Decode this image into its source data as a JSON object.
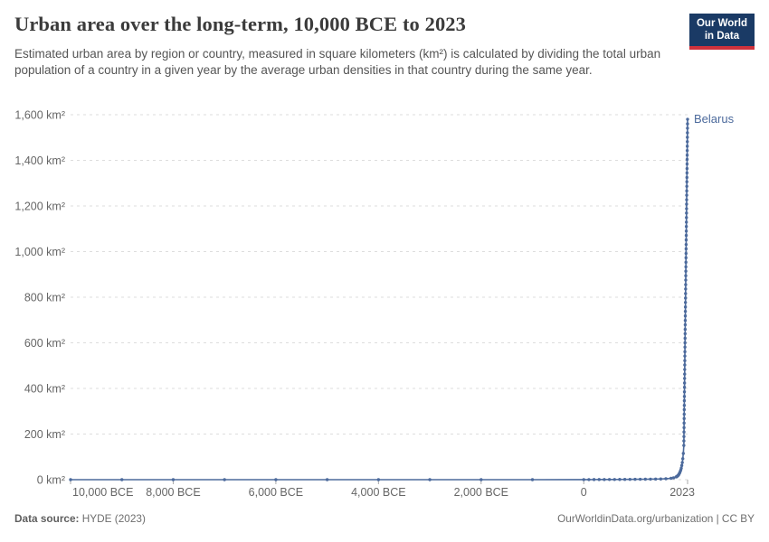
{
  "header": {
    "title": "Urban area over the long-term, 10,000 BCE to 2023",
    "subtitle": "Estimated urban area by region or country, measured in square kilometers (km²) is calculated by dividing the total urban population of a country in a given year by the average urban densities in that country during the same year."
  },
  "logo": {
    "line1": "Our World",
    "line2": "in Data",
    "bg_color": "#1a3a65",
    "accent_color": "#cf323c"
  },
  "footer": {
    "datasource_label": "Data source:",
    "datasource_value": "HYDE (2023)",
    "link": "OurWorldinData.org/urbanization | CC BY"
  },
  "chart_data": {
    "type": "line",
    "title": "Urban area over the long-term, 10,000 BCE to 2023",
    "xlabel": "",
    "ylabel": "km²",
    "xlim": [
      -10000,
      2023
    ],
    "ylim": [
      0,
      1600
    ],
    "grid": "dashed-horizontal",
    "legend_position": "line-end-label",
    "colors": {
      "line": "#4c6a9c",
      "grid": "#dddddd",
      "axis_tick": "#a9a9a9",
      "axis_label": "#666666"
    },
    "x_ticks": [
      {
        "v": -10000,
        "label": "10,000 BCE",
        "align": "start"
      },
      {
        "v": -8000,
        "label": "8,000 BCE",
        "align": "middle"
      },
      {
        "v": -6000,
        "label": "6,000 BCE",
        "align": "middle"
      },
      {
        "v": -4000,
        "label": "4,000 BCE",
        "align": "middle"
      },
      {
        "v": -2000,
        "label": "2,000 BCE",
        "align": "middle"
      },
      {
        "v": 0,
        "label": "0",
        "align": "middle"
      },
      {
        "v": 2023,
        "label": "2023",
        "align": "end"
      }
    ],
    "y_ticks": [
      {
        "v": 0,
        "label": "0 km²"
      },
      {
        "v": 200,
        "label": "200 km²"
      },
      {
        "v": 400,
        "label": "400 km²"
      },
      {
        "v": 600,
        "label": "600 km²"
      },
      {
        "v": 800,
        "label": "800 km²"
      },
      {
        "v": 1000,
        "label": "1,000 km²"
      },
      {
        "v": 1200,
        "label": "1,200 km²"
      },
      {
        "v": 1400,
        "label": "1,400 km²"
      },
      {
        "v": 1600,
        "label": "1,600 km²"
      }
    ],
    "series": [
      {
        "name": "Belarus",
        "color": "#4c6a9c",
        "points": [
          [
            -10000,
            0
          ],
          [
            -9000,
            0
          ],
          [
            -8000,
            0
          ],
          [
            -7000,
            0
          ],
          [
            -6000,
            0
          ],
          [
            -5000,
            0
          ],
          [
            -4000,
            0
          ],
          [
            -3000,
            0
          ],
          [
            -2000,
            0
          ],
          [
            -1000,
            0
          ],
          [
            0,
            0.3
          ],
          [
            100,
            0.4
          ],
          [
            200,
            0.5
          ],
          [
            300,
            0.6
          ],
          [
            400,
            0.7
          ],
          [
            500,
            0.8
          ],
          [
            600,
            0.9
          ],
          [
            700,
            1
          ],
          [
            800,
            1.2
          ],
          [
            900,
            1.4
          ],
          [
            1000,
            1.6
          ],
          [
            1100,
            1.8
          ],
          [
            1200,
            2
          ],
          [
            1300,
            2.3
          ],
          [
            1400,
            2.6
          ],
          [
            1500,
            3
          ],
          [
            1600,
            4.2
          ],
          [
            1700,
            6
          ],
          [
            1750,
            8
          ],
          [
            1800,
            12
          ],
          [
            1810,
            13
          ],
          [
            1820,
            15
          ],
          [
            1830,
            17
          ],
          [
            1840,
            19
          ],
          [
            1850,
            22
          ],
          [
            1860,
            26
          ],
          [
            1870,
            30
          ],
          [
            1880,
            36
          ],
          [
            1890,
            42
          ],
          [
            1900,
            50
          ],
          [
            1910,
            62
          ],
          [
            1920,
            75
          ],
          [
            1930,
            92
          ],
          [
            1940,
            115
          ],
          [
            1950,
            150
          ],
          [
            1951,
            170
          ],
          [
            1952,
            189
          ],
          [
            1953,
            209
          ],
          [
            1954,
            228
          ],
          [
            1955,
            248
          ],
          [
            1956,
            268
          ],
          [
            1957,
            287
          ],
          [
            1958,
            307
          ],
          [
            1959,
            326
          ],
          [
            1960,
            346
          ],
          [
            1961,
            365
          ],
          [
            1962,
            385
          ],
          [
            1963,
            405
          ],
          [
            1964,
            424
          ],
          [
            1965,
            444
          ],
          [
            1966,
            463
          ],
          [
            1967,
            483
          ],
          [
            1968,
            503
          ],
          [
            1969,
            522
          ],
          [
            1970,
            542
          ],
          [
            1971,
            561
          ],
          [
            1972,
            581
          ],
          [
            1973,
            600
          ],
          [
            1974,
            620
          ],
          [
            1975,
            640
          ],
          [
            1976,
            659
          ],
          [
            1977,
            679
          ],
          [
            1978,
            698
          ],
          [
            1979,
            718
          ],
          [
            1980,
            738
          ],
          [
            1981,
            757
          ],
          [
            1982,
            777
          ],
          [
            1983,
            796
          ],
          [
            1984,
            816
          ],
          [
            1985,
            836
          ],
          [
            1986,
            855
          ],
          [
            1987,
            875
          ],
          [
            1988,
            894
          ],
          [
            1989,
            914
          ],
          [
            1990,
            933
          ],
          [
            1991,
            953
          ],
          [
            1992,
            973
          ],
          [
            1993,
            992
          ],
          [
            1994,
            1012
          ],
          [
            1995,
            1031
          ],
          [
            1996,
            1051
          ],
          [
            1997,
            1071
          ],
          [
            1998,
            1090
          ],
          [
            1999,
            1110
          ],
          [
            2000,
            1129
          ],
          [
            2001,
            1149
          ],
          [
            2002,
            1169
          ],
          [
            2003,
            1188
          ],
          [
            2004,
            1208
          ],
          [
            2005,
            1227
          ],
          [
            2006,
            1247
          ],
          [
            2007,
            1266
          ],
          [
            2008,
            1286
          ],
          [
            2009,
            1306
          ],
          [
            2010,
            1325
          ],
          [
            2011,
            1345
          ],
          [
            2012,
            1364
          ],
          [
            2013,
            1384
          ],
          [
            2014,
            1404
          ],
          [
            2015,
            1423
          ],
          [
            2016,
            1443
          ],
          [
            2017,
            1462
          ],
          [
            2018,
            1482
          ],
          [
            2019,
            1501
          ],
          [
            2020,
            1521
          ],
          [
            2021,
            1541
          ],
          [
            2022,
            1560
          ],
          [
            2023,
            1580
          ]
        ]
      }
    ]
  }
}
